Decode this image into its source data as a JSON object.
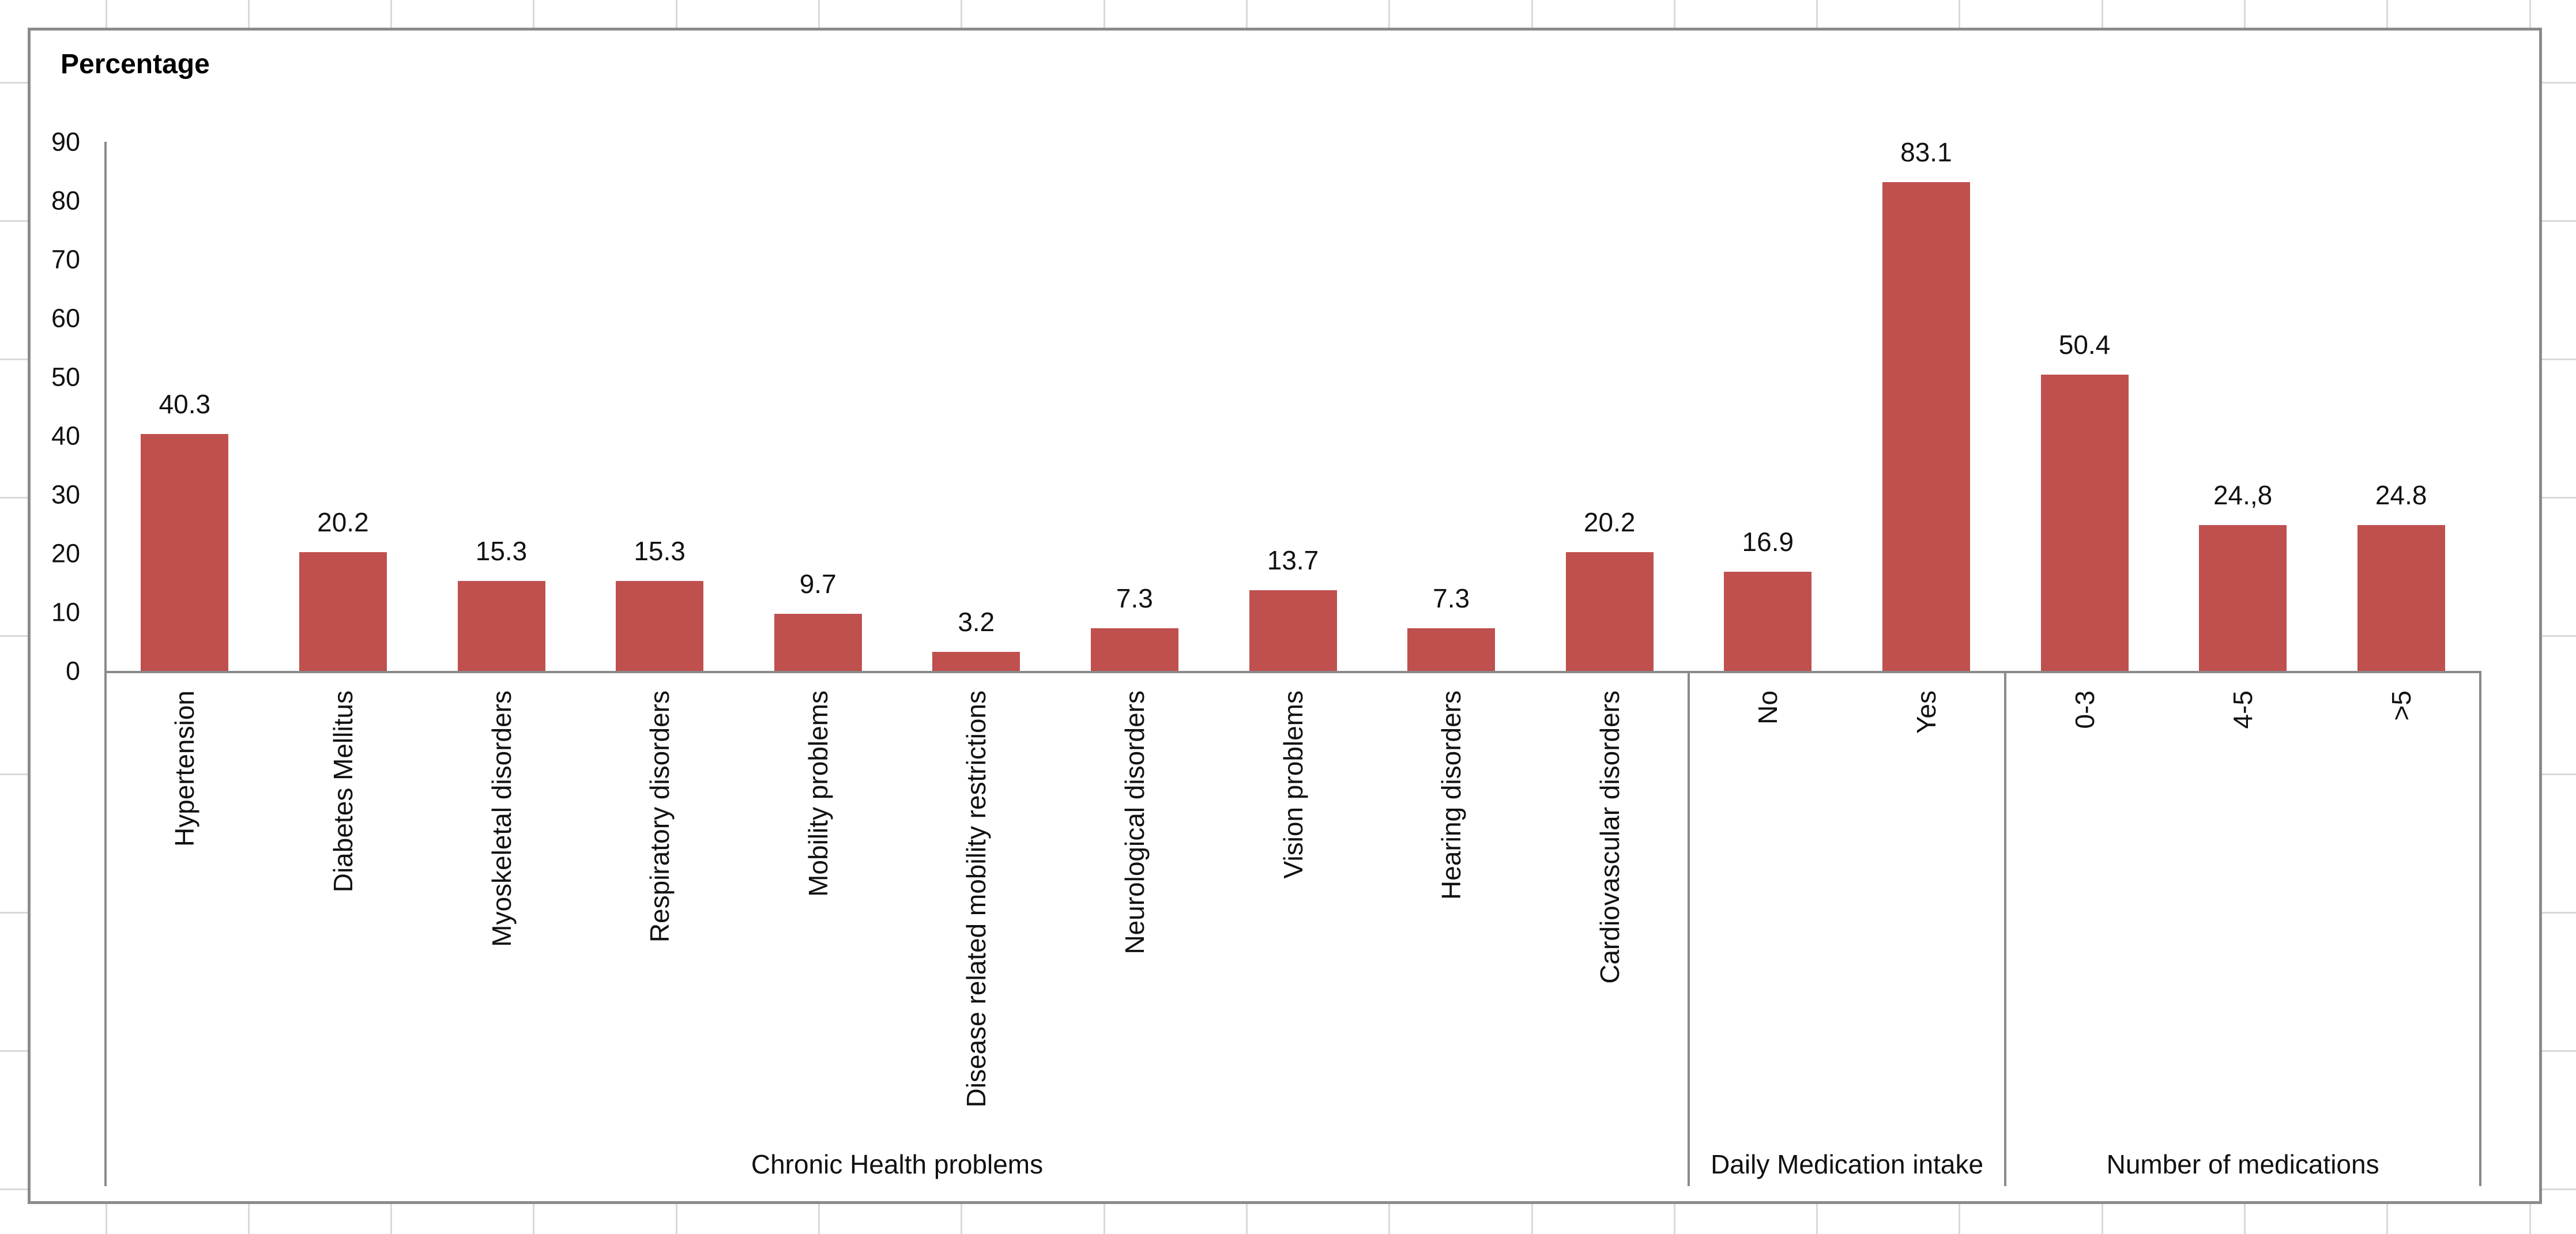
{
  "chart_data": {
    "type": "bar",
    "title": "Percentage",
    "categories": [
      "Hypertension",
      "Diabetes Mellitus",
      "Myoskeletal disorders",
      "Respiratory disorders",
      "Mobility problems",
      "Disease related mobility restrictions",
      "Neurological disorders",
      "Vision problems",
      "Hearing disorders",
      "Cardiovascular disorders",
      "No",
      "Yes",
      "0-3",
      "4-5",
      ">5"
    ],
    "values": [
      40.3,
      20.2,
      15.3,
      15.3,
      9.7,
      3.2,
      7.3,
      13.7,
      7.3,
      20.2,
      16.9,
      83.1,
      50.4,
      24.8,
      24.8
    ],
    "value_labels": [
      "40.3",
      "20.2",
      "15.3",
      "15.3",
      "9.7",
      "3.2",
      "7.3",
      "13.7",
      "7.3",
      "20.2",
      "16.9",
      "83.1",
      "50.4",
      "24.,8",
      "24.8"
    ],
    "groups": [
      {
        "label": "Chronic Health problems",
        "span": 10
      },
      {
        "label": "Daily Medication intake",
        "span": 2
      },
      {
        "label": "Number of medications",
        "span": 3
      }
    ],
    "y_axis": {
      "min": 0,
      "max": 90,
      "step": 10
    },
    "ylim": [
      0,
      90
    ],
    "xlabel": "",
    "ylabel": "Percentage",
    "grid": false,
    "legend": "none",
    "bar_color": "#bf504e",
    "axis_line_color": "#8a8a8a",
    "frame_color": "#8b8b8b",
    "worksheet_gridline_color": "#d9d9d9"
  }
}
